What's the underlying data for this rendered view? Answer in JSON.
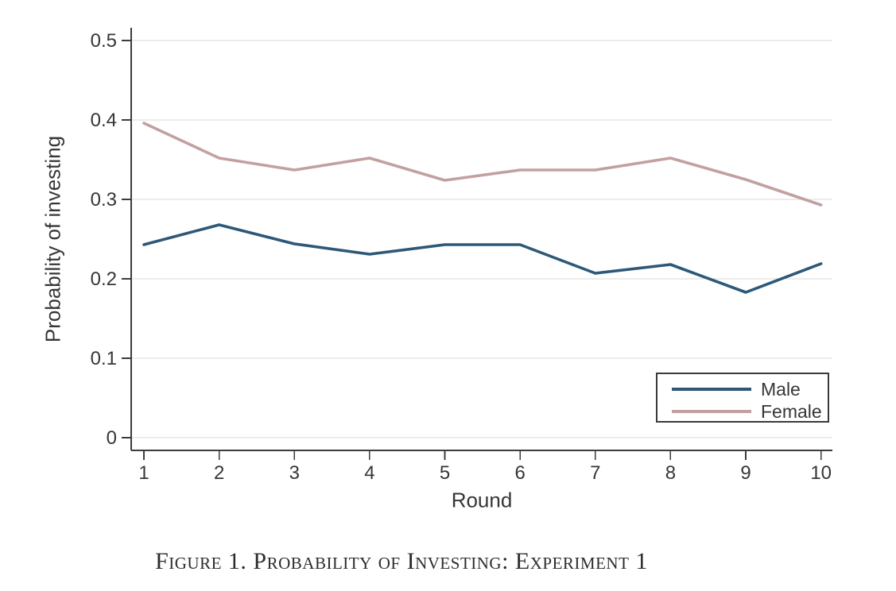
{
  "figure": {
    "caption": "Figure 1. Probability of Investing: Experiment 1"
  },
  "chart_data": {
    "type": "line",
    "title": "",
    "xlabel": "Round",
    "ylabel": "Probability of investing",
    "x": [
      1,
      2,
      3,
      4,
      5,
      6,
      7,
      8,
      9,
      10
    ],
    "xtick_labels": [
      "1",
      "2",
      "3",
      "4",
      "5",
      "6",
      "7",
      "8",
      "9",
      "10"
    ],
    "ylim": [
      0,
      0.5
    ],
    "yticks": [
      0,
      0.1,
      0.2,
      0.3,
      0.4,
      0.5
    ],
    "ytick_labels": [
      "0",
      "0.1",
      "0.2",
      "0.3",
      "0.4",
      "0.5"
    ],
    "grid": "horizontal",
    "legend_position": "inside bottom-right",
    "series": [
      {
        "name": "Male",
        "color": "#2d5878",
        "values": [
          0.243,
          0.268,
          0.244,
          0.231,
          0.243,
          0.243,
          0.207,
          0.218,
          0.183,
          0.219
        ]
      },
      {
        "name": "Female",
        "color": "#c3a0a0",
        "values": [
          0.396,
          0.352,
          0.337,
          0.352,
          0.324,
          0.337,
          0.337,
          0.352,
          0.325,
          0.293
        ]
      }
    ]
  }
}
